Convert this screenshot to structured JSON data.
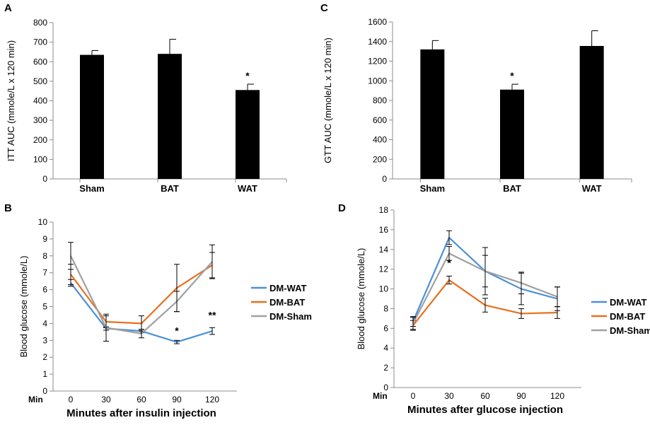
{
  "colors": {
    "wat": "#4A90D9",
    "bat": "#E8701E",
    "sham": "#A0A0A0",
    "bar": "#000000",
    "axis": "#8c8c8c"
  },
  "chart_data": [
    {
      "panel": "A",
      "type": "bar",
      "ylabel": "ITT AUC (mmole/L x 120 min)",
      "categories": [
        "Sham",
        "BAT",
        "WAT"
      ],
      "values": [
        635,
        640,
        455
      ],
      "errors": [
        22,
        75,
        30
      ],
      "significance": [
        "",
        "",
        "*"
      ],
      "ylim": [
        0,
        800
      ],
      "yticks": [
        0,
        100,
        200,
        300,
        400,
        500,
        600,
        700,
        800
      ]
    },
    {
      "panel": "C",
      "type": "bar",
      "ylabel": "GTT AUC (mmole/L x 120 min)",
      "categories": [
        "Sham",
        "BAT",
        "WAT"
      ],
      "values": [
        1320,
        910,
        1355
      ],
      "errors": [
        90,
        55,
        155
      ],
      "significance": [
        "",
        "*",
        ""
      ],
      "ylim": [
        0,
        1600
      ],
      "yticks": [
        0,
        200,
        400,
        600,
        800,
        1000,
        1200,
        1400,
        1600
      ]
    },
    {
      "panel": "B",
      "type": "line",
      "ylabel": "Blood glucose (mmole/L)",
      "xlabel": "Minutes after insulin injection",
      "xprefix": "Min",
      "x": [
        0,
        30,
        60,
        90,
        120
      ],
      "ylim": [
        0,
        10
      ],
      "yticks": [
        0,
        1,
        2,
        3,
        4,
        5,
        6,
        7,
        8,
        9,
        10
      ],
      "series": [
        {
          "name": "DM-WAT",
          "color": "wat",
          "values": [
            6.4,
            3.7,
            3.55,
            2.9,
            3.55
          ],
          "errors": [
            0.2,
            0.1,
            0.1,
            0.1,
            0.2
          ]
        },
        {
          "name": "DM-BAT",
          "color": "bat",
          "values": [
            6.9,
            4.1,
            4.0,
            6.1,
            7.45
          ],
          "errors": [
            0.6,
            0.35,
            0.45,
            1.4,
            0.75
          ]
        },
        {
          "name": "DM-Sham",
          "color": "sham",
          "values": [
            8.0,
            3.75,
            3.4,
            5.3,
            7.65
          ],
          "errors": [
            0.8,
            0.8,
            0.25,
            0.6,
            1.0
          ]
        }
      ],
      "annotations": [
        {
          "x": 90,
          "text": "*"
        },
        {
          "x": 120,
          "text": "**"
        }
      ]
    },
    {
      "panel": "D",
      "type": "line",
      "ylabel": "Blood glucose (mmole/L)",
      "xlabel": "Minutes after glucose injection",
      "xprefix": "Min",
      "x": [
        0,
        30,
        60,
        90,
        120
      ],
      "ylim": [
        0,
        18
      ],
      "yticks": [
        0,
        2,
        4,
        6,
        8,
        10,
        12,
        14,
        16,
        18
      ],
      "series": [
        {
          "name": "DM-WAT",
          "color": "wat",
          "values": [
            6.7,
            15.2,
            11.8,
            10.0,
            9.0
          ],
          "errors": [
            0.5,
            0.7,
            2.4,
            1.6,
            1.2
          ]
        },
        {
          "name": "DM-BAT",
          "color": "bat",
          "values": [
            6.3,
            10.9,
            8.35,
            7.5,
            7.6
          ],
          "errors": [
            0.5,
            0.4,
            0.7,
            0.5,
            0.6
          ]
        },
        {
          "name": "DM-Sham",
          "color": "sham",
          "values": [
            6.5,
            13.6,
            11.8,
            10.6,
            9.2
          ],
          "errors": [
            0.6,
            0.7,
            1.6,
            1.1,
            1.0
          ]
        }
      ],
      "annotations": [
        {
          "x": 30,
          "text": "*"
        }
      ]
    }
  ]
}
